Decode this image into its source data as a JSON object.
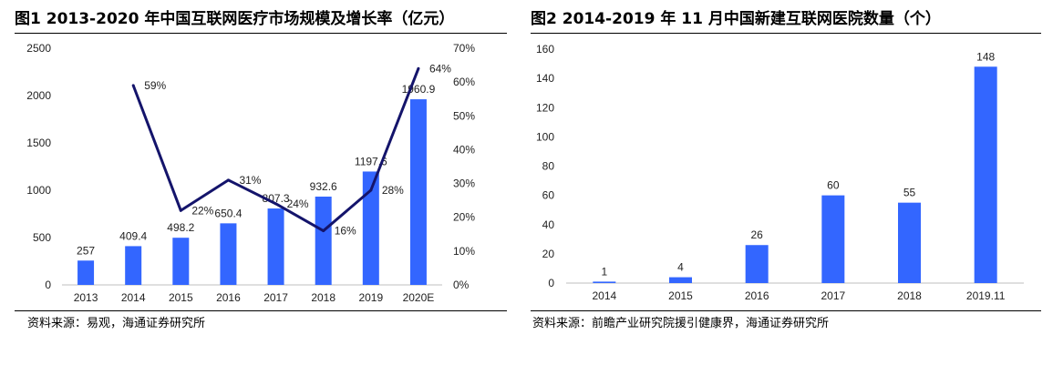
{
  "figures": [
    {
      "title": "图1  2013-2020 年中国互联网医疗市场规模及增长率（亿元）",
      "source": "资料来源：易观，海通证券研究所"
    },
    {
      "title": "图2  2014-2019 年 11 月中国新建互联网医院数量（个）",
      "source": "资料来源：前瞻产业研究院援引健康界，海通证券研究所"
    }
  ],
  "chart_data": [
    {
      "type": "bar",
      "categories": [
        "2013",
        "2014",
        "2015",
        "2016",
        "2017",
        "2018",
        "2019",
        "2020E"
      ],
      "series": [
        {
          "type": "bar",
          "values": [
            257,
            409.4,
            498.2,
            650.4,
            807.3,
            932.6,
            1197.6,
            1960.9
          ],
          "labels": [
            "257",
            "409.4",
            "498.2",
            "650.4",
            "807.3",
            "932.6",
            "1197.6",
            "1960.9"
          ],
          "color": "#3366ff",
          "axis": "left"
        },
        {
          "type": "line",
          "values": [
            null,
            59,
            22,
            31,
            24,
            16,
            28,
            64
          ],
          "labels": [
            "",
            "59%",
            "22%",
            "31%",
            "24%",
            "16%",
            "28%",
            "64%"
          ],
          "color": "#14146b",
          "axis": "right"
        }
      ],
      "y_left": {
        "ylim": [
          0,
          2500
        ],
        "ticks": [
          "0",
          "500",
          "1000",
          "1500",
          "2000",
          "2500"
        ]
      },
      "y_right": {
        "ylim": [
          0,
          70
        ],
        "ticks": [
          "0%",
          "10%",
          "20%",
          "30%",
          "40%",
          "50%",
          "60%",
          "70%"
        ]
      },
      "grid": false,
      "legend": "none"
    },
    {
      "type": "bar",
      "categories": [
        "2014",
        "2015",
        "2016",
        "2017",
        "2018",
        "2019.11"
      ],
      "series": [
        {
          "type": "bar",
          "values": [
            1,
            4,
            26,
            60,
            55,
            148
          ],
          "labels": [
            "1",
            "4",
            "26",
            "60",
            "55",
            "148"
          ],
          "color": "#3366ff"
        }
      ],
      "y": {
        "ylim": [
          0,
          160
        ],
        "ticks": [
          "0",
          "20",
          "40",
          "60",
          "80",
          "100",
          "120",
          "140",
          "160"
        ]
      },
      "grid": false,
      "legend": "none"
    }
  ]
}
